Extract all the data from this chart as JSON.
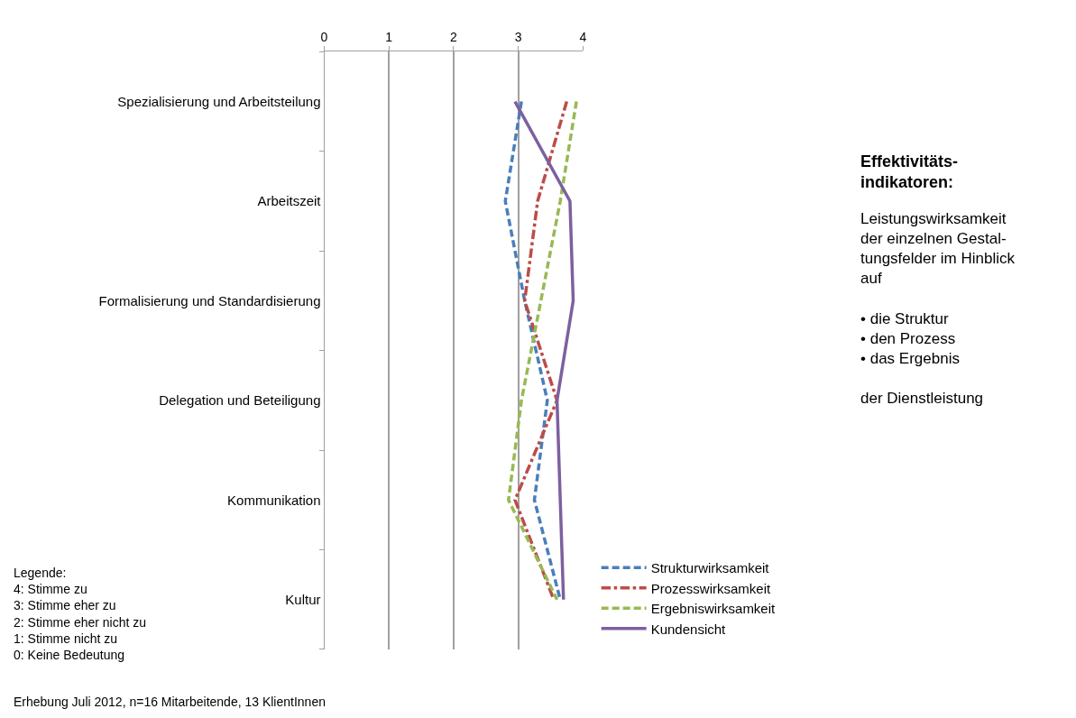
{
  "chart_data": {
    "type": "line",
    "orientation": "horizontal",
    "categories": [
      "Spezialisierung und Arbeitsteilung",
      "Arbeitszeit",
      "Formalisierung und Standardisierung",
      "Delegation und Beteiligung",
      "Kommunikation",
      "Kultur"
    ],
    "series": [
      {
        "name": "Strukturwirksamkeit",
        "color": "#4a7ebb",
        "line_style": "dashed",
        "values": [
          3.05,
          2.8,
          3.1,
          3.45,
          3.25,
          3.65
        ]
      },
      {
        "name": "Prozesswirksamkeit",
        "color": "#be4b48",
        "line_style": "dashdot",
        "values": [
          3.75,
          3.3,
          3.1,
          3.6,
          2.95,
          3.55
        ]
      },
      {
        "name": "Ergebniswirksamkeit",
        "color": "#98b954",
        "line_style": "dashed",
        "values": [
          3.9,
          3.65,
          3.35,
          3.05,
          2.85,
          3.6
        ]
      },
      {
        "name": "Kundensicht",
        "color": "#7d60a0",
        "line_style": "solid",
        "values": [
          2.95,
          3.8,
          3.85,
          3.6,
          3.65,
          3.7
        ]
      }
    ],
    "xlim": [
      0,
      4
    ],
    "xticks": [
      0,
      1,
      2,
      3,
      4
    ],
    "grid": "x",
    "legend": "bottom right",
    "marker": "none",
    "annotations": [
      "Effektivitäts-\nindikatoren:",
      "Leistungswirksamkeit\nder einzelnen Gestal-\ntungsfelder im Hinblick\nauf\n\n• die Struktur\n• den Prozess\n• das Ergebnis\n\nder Dienstleistung",
      "Legende:\n4: Stimme zu\n3: Stimme eher zu\n2: Stimme eher nicht zu\n1: Stimme nicht zu\n0: Keine Bedeutung",
      "Erhebung Juli 2012, n=16 Mitarbeitende, 13 KlientInnen"
    ]
  }
}
